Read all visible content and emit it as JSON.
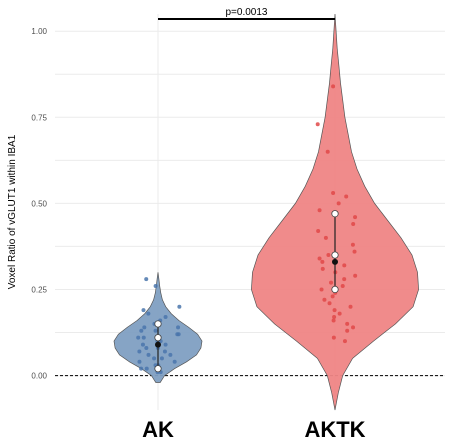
{
  "chart_data": {
    "type": "violin",
    "ylabel": "Voxel Ratio of vGLUT1 within IBA1",
    "ylim": [
      -0.1,
      1.05
    ],
    "yticks": [
      0.0,
      0.25,
      0.5,
      0.75,
      1.0
    ],
    "ytick_labels": [
      "0.00",
      "0.25",
      "0.50",
      "0.75",
      "1.00"
    ],
    "grid": true,
    "reference_line": {
      "y": 0.0,
      "style": "dashed"
    },
    "categories": [
      "AK",
      "AKTK"
    ],
    "colors": {
      "AK": "#7f9fc2",
      "AKTK": "#ef8585"
    },
    "point_colors": {
      "AK": "#4a76ab",
      "AKTK": "#e04848"
    },
    "significance": {
      "label": "p=0.0013",
      "between": [
        "AK",
        "AKTK"
      ]
    },
    "groups": [
      {
        "name": "AK",
        "violin": {
          "y": [
            -0.02,
            0.0,
            0.02,
            0.04,
            0.06,
            0.08,
            0.1,
            0.12,
            0.14,
            0.16,
            0.18,
            0.2,
            0.22,
            0.24,
            0.26,
            0.28,
            0.3
          ],
          "half_width": [
            0.02,
            0.06,
            0.15,
            0.26,
            0.35,
            0.39,
            0.4,
            0.36,
            0.28,
            0.19,
            0.12,
            0.07,
            0.04,
            0.025,
            0.015,
            0.008,
            0.0
          ]
        },
        "summary": {
          "q1": 0.02,
          "q3": 0.15,
          "median": 0.11,
          "mean": 0.09,
          "ci": [
            0.02,
            0.15
          ]
        },
        "points": [
          0.01,
          0.01,
          0.02,
          0.02,
          0.03,
          0.03,
          0.04,
          0.04,
          0.05,
          0.05,
          0.06,
          0.06,
          0.07,
          0.07,
          0.08,
          0.08,
          0.09,
          0.09,
          0.1,
          0.1,
          0.11,
          0.11,
          0.12,
          0.12,
          0.13,
          0.13,
          0.14,
          0.14,
          0.15,
          0.16,
          0.17,
          0.18,
          0.19,
          0.2,
          0.26,
          0.28
        ]
      },
      {
        "name": "AKTK",
        "violin": {
          "y": [
            -0.1,
            -0.05,
            0.0,
            0.05,
            0.1,
            0.15,
            0.2,
            0.25,
            0.3,
            0.35,
            0.4,
            0.45,
            0.5,
            0.55,
            0.6,
            0.65,
            0.7,
            0.75,
            0.8,
            0.85,
            0.9,
            0.95,
            1.0,
            1.05
          ],
          "half_width": [
            0.0,
            0.03,
            0.07,
            0.16,
            0.35,
            0.55,
            0.71,
            0.76,
            0.75,
            0.7,
            0.6,
            0.48,
            0.36,
            0.27,
            0.2,
            0.15,
            0.12,
            0.09,
            0.07,
            0.05,
            0.035,
            0.02,
            0.01,
            0.0
          ]
        },
        "summary": {
          "q1": 0.25,
          "q3": 0.47,
          "median": 0.35,
          "mean": 0.33,
          "ci": [
            0.25,
            0.47
          ]
        },
        "points": [
          0.1,
          0.11,
          0.13,
          0.14,
          0.15,
          0.16,
          0.17,
          0.18,
          0.19,
          0.2,
          0.21,
          0.22,
          0.23,
          0.24,
          0.25,
          0.26,
          0.27,
          0.28,
          0.29,
          0.3,
          0.31,
          0.32,
          0.33,
          0.34,
          0.35,
          0.36,
          0.38,
          0.4,
          0.42,
          0.44,
          0.46,
          0.48,
          0.5,
          0.52,
          0.53,
          0.65,
          0.73,
          0.84
        ]
      }
    ]
  }
}
